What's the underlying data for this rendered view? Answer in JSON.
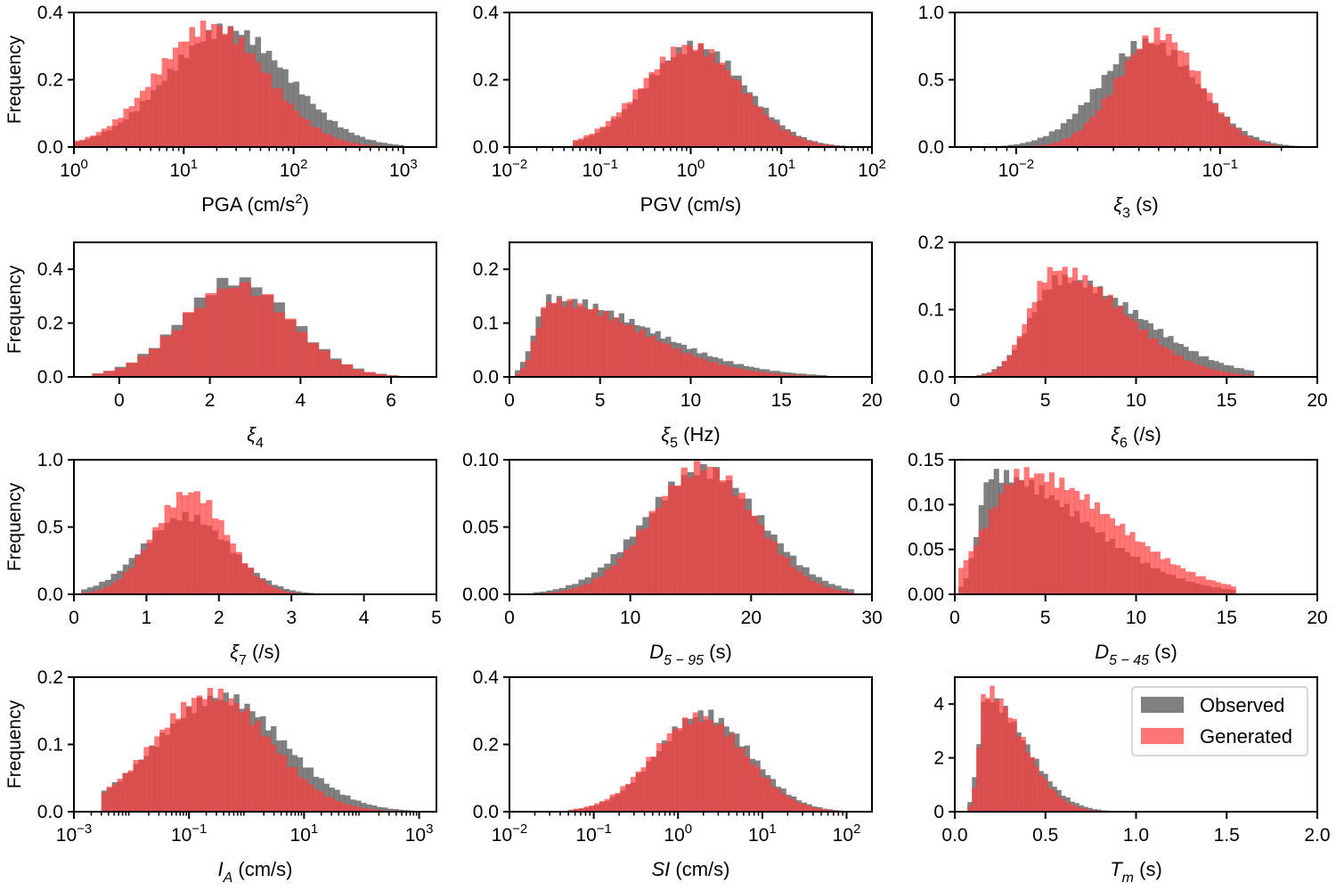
{
  "figure": {
    "legend": {
      "placement": "top-right of last panel",
      "entries": [
        {
          "label": "Observed",
          "color": "#555555"
        },
        {
          "label": "Generated",
          "color": "#ff3c3c"
        }
      ]
    },
    "colors": {
      "observed": "#555555",
      "generated": "#ff3c3c",
      "observed_alpha": 0.75,
      "generated_alpha": 0.7
    }
  },
  "chart_data": [
    {
      "id": "pga",
      "type": "bar",
      "scale": "log",
      "xlim": [
        1,
        2000
      ],
      "ylim": [
        0,
        0.4
      ],
      "xticks": [
        {
          "v": 1,
          "b": "10",
          "e": "0"
        },
        {
          "v": 10,
          "b": "10",
          "e": "1"
        },
        {
          "v": 100,
          "b": "10",
          "e": "2"
        },
        {
          "v": 1000,
          "b": "10",
          "e": "3"
        }
      ],
      "yticks": [
        {
          "v": 0,
          "t": "0.0"
        },
        {
          "v": 0.2,
          "t": "0.2"
        },
        {
          "v": 0.4,
          "t": "0.4"
        }
      ],
      "ylabel": "Frequency",
      "xlabel_parts": [
        [
          "PGA (cm/s",
          "n"
        ],
        [
          "2",
          "sup"
        ],
        [
          ")",
          "n"
        ]
      ],
      "bin": {
        "min": 1,
        "max": 1000,
        "n": 60
      },
      "obs": {
        "type": "normal",
        "mu": 1.4,
        "sigma": 0.55,
        "peak": 0.35
      },
      "gen": {
        "type": "normal",
        "mu": 1.25,
        "sigma": 0.5,
        "peak": 0.36
      }
    },
    {
      "id": "pgv",
      "type": "bar",
      "scale": "log",
      "xlim": [
        0.01,
        100
      ],
      "ylim": [
        0,
        0.4
      ],
      "xticks": [
        {
          "v": 0.01,
          "b": "10",
          "e": "−2"
        },
        {
          "v": 0.1,
          "b": "10",
          "e": "−1"
        },
        {
          "v": 1,
          "b": "10",
          "e": "0"
        },
        {
          "v": 10,
          "b": "10",
          "e": "1"
        },
        {
          "v": 100,
          "b": "10",
          "e": "2"
        }
      ],
      "yticks": [
        {
          "v": 0,
          "t": "0.0"
        },
        {
          "v": 0.2,
          "t": "0.2"
        },
        {
          "v": 0.4,
          "t": "0.4"
        }
      ],
      "ylabel": "",
      "xlabel_parts": [
        [
          "PGV (cm/s)",
          "n"
        ]
      ],
      "bin": {
        "min": 0.05,
        "max": 100,
        "n": 55
      },
      "obs": {
        "type": "normal",
        "mu": 0.05,
        "sigma": 0.55,
        "peak": 0.3
      },
      "gen": {
        "type": "normal",
        "mu": 0.0,
        "sigma": 0.55,
        "peak": 0.3
      }
    },
    {
      "id": "xi3",
      "type": "bar",
      "scale": "log",
      "xlim": [
        0.005,
        0.3
      ],
      "ylim": [
        0,
        1.0
      ],
      "xticks": [
        {
          "v": 0.01,
          "b": "10",
          "e": "−2"
        },
        {
          "v": 0.1,
          "b": "10",
          "e": "−1"
        }
      ],
      "yticks": [
        {
          "v": 0,
          "t": "0.0"
        },
        {
          "v": 0.5,
          "t": "0.5"
        },
        {
          "v": 1.0,
          "t": "1.0"
        }
      ],
      "ylabel": "",
      "xlabel_parts": [
        [
          "ξ",
          "i"
        ],
        [
          "3",
          "sub"
        ],
        [
          " (s)",
          "n"
        ]
      ],
      "bin": {
        "min": 0.008,
        "max": 0.3,
        "n": 55
      },
      "obs": {
        "type": "normal",
        "mu": -1.35,
        "sigma": 0.24,
        "peak": 0.78
      },
      "gen": {
        "type": "normal",
        "mu": -1.3,
        "sigma": 0.2,
        "peak": 0.84
      }
    },
    {
      "id": "xi4",
      "type": "bar",
      "scale": "linear",
      "xlim": [
        -1,
        7
      ],
      "ylim": [
        0,
        0.5
      ],
      "xticks": [
        {
          "v": 0,
          "t": "0"
        },
        {
          "v": 2,
          "t": "2"
        },
        {
          "v": 4,
          "t": "4"
        },
        {
          "v": 6,
          "t": "6"
        }
      ],
      "yticks": [
        {
          "v": 0,
          "t": "0.0"
        },
        {
          "v": 0.2,
          "t": "0.2"
        },
        {
          "v": 0.4,
          "t": "0.4"
        }
      ],
      "ylabel": "Frequency",
      "xlabel_parts": [
        [
          "ξ",
          "i"
        ],
        [
          "4",
          "sub"
        ]
      ],
      "bin": {
        "min": -0.6,
        "max": 6.4,
        "n": 28
      },
      "obs": {
        "type": "normal",
        "mu": 2.6,
        "sigma": 1.2,
        "peak": 0.36
      },
      "gen": {
        "type": "normal",
        "mu": 2.6,
        "sigma": 1.2,
        "peak": 0.34
      }
    },
    {
      "id": "xi5",
      "type": "bar",
      "scale": "linear",
      "xlim": [
        0,
        20
      ],
      "ylim": [
        0,
        0.25
      ],
      "xticks": [
        {
          "v": 0,
          "t": "0"
        },
        {
          "v": 5,
          "t": "5"
        },
        {
          "v": 10,
          "t": "10"
        },
        {
          "v": 15,
          "t": "15"
        },
        {
          "v": 20,
          "t": "20"
        }
      ],
      "yticks": [
        {
          "v": 0,
          "t": "0.0"
        },
        {
          "v": 0.1,
          "t": "0.1"
        },
        {
          "v": 0.2,
          "t": "0.2"
        }
      ],
      "ylabel": "",
      "xlabel_parts": [
        [
          "ξ",
          "i"
        ],
        [
          "5",
          "sub"
        ],
        [
          " (Hz)",
          "n"
        ]
      ],
      "bin": {
        "min": 0.3,
        "max": 17.5,
        "n": 60
      },
      "obs": {
        "type": "skew",
        "mode": 2.2,
        "left": 0.8,
        "right": 5.5,
        "peak": 0.145
      },
      "gen": {
        "type": "skew",
        "mode": 2.2,
        "left": 0.7,
        "right": 5.0,
        "peak": 0.14
      }
    },
    {
      "id": "xi6",
      "type": "bar",
      "scale": "linear",
      "xlim": [
        0,
        20
      ],
      "ylim": [
        0,
        0.2
      ],
      "xticks": [
        {
          "v": 0,
          "t": "0"
        },
        {
          "v": 5,
          "t": "5"
        },
        {
          "v": 10,
          "t": "10"
        },
        {
          "v": 15,
          "t": "15"
        },
        {
          "v": 20,
          "t": "20"
        }
      ],
      "yticks": [
        {
          "v": 0,
          "t": "0.0"
        },
        {
          "v": 0.1,
          "t": "0.1"
        },
        {
          "v": 0.2,
          "t": "0.2"
        }
      ],
      "ylabel": "",
      "xlabel_parts": [
        [
          "ξ",
          "i"
        ],
        [
          "6",
          "sub"
        ],
        [
          " (/s)",
          "n"
        ]
      ],
      "bin": {
        "min": 1.2,
        "max": 16.5,
        "n": 55
      },
      "obs": {
        "type": "skew",
        "mode": 5.8,
        "left": 1.6,
        "right": 4.5,
        "peak": 0.145
      },
      "gen": {
        "type": "skew",
        "mode": 5.5,
        "left": 1.4,
        "right": 3.8,
        "peak": 0.16
      }
    },
    {
      "id": "xi7",
      "type": "bar",
      "scale": "linear",
      "xlim": [
        0,
        5
      ],
      "ylim": [
        0,
        1.0
      ],
      "xticks": [
        {
          "v": 0,
          "t": "0"
        },
        {
          "v": 1,
          "t": "1"
        },
        {
          "v": 2,
          "t": "2"
        },
        {
          "v": 3,
          "t": "3"
        },
        {
          "v": 4,
          "t": "4"
        },
        {
          "v": 5,
          "t": "5"
        }
      ],
      "yticks": [
        {
          "v": 0,
          "t": "0.0"
        },
        {
          "v": 0.5,
          "t": "0.5"
        },
        {
          "v": 1.0,
          "t": "1.0"
        }
      ],
      "ylabel": "Frequency",
      "xlabel_parts": [
        [
          "ξ",
          "i"
        ],
        [
          "7",
          "sub"
        ],
        [
          " (/s)",
          "n"
        ]
      ],
      "bin": {
        "min": 0.1,
        "max": 4.2,
        "n": 50
      },
      "obs": {
        "type": "normal",
        "mu": 1.55,
        "sigma": 0.6,
        "peak": 0.58
      },
      "gen": {
        "type": "normal",
        "mu": 1.6,
        "sigma": 0.5,
        "peak": 0.76
      }
    },
    {
      "id": "d595",
      "type": "bar",
      "scale": "linear",
      "xlim": [
        0,
        30
      ],
      "ylim": [
        0,
        0.1
      ],
      "xticks": [
        {
          "v": 0,
          "t": "0"
        },
        {
          "v": 10,
          "t": "10"
        },
        {
          "v": 20,
          "t": "20"
        },
        {
          "v": 30,
          "t": "30"
        }
      ],
      "yticks": [
        {
          "v": 0,
          "t": "0.00"
        },
        {
          "v": 0.05,
          "t": "0.05"
        },
        {
          "v": 0.1,
          "t": "0.10"
        }
      ],
      "ylabel": "",
      "xlabel_parts": [
        [
          "D",
          "i"
        ],
        [
          "5 − 95",
          "subi"
        ],
        [
          " (s)",
          "n"
        ]
      ],
      "bin": {
        "min": 2,
        "max": 28.5,
        "n": 50
      },
      "obs": {
        "type": "normal",
        "mu": 16,
        "sigma": 4.8,
        "peak": 0.092
      },
      "gen": {
        "type": "normal",
        "mu": 16,
        "sigma": 4.3,
        "peak": 0.095
      }
    },
    {
      "id": "d545",
      "type": "bar",
      "scale": "linear",
      "xlim": [
        0,
        20
      ],
      "ylim": [
        0,
        0.15
      ],
      "xticks": [
        {
          "v": 0,
          "t": "0"
        },
        {
          "v": 5,
          "t": "5"
        },
        {
          "v": 10,
          "t": "10"
        },
        {
          "v": 15,
          "t": "15"
        },
        {
          "v": 20,
          "t": "20"
        }
      ],
      "yticks": [
        {
          "v": 0,
          "t": "0.00"
        },
        {
          "v": 0.05,
          "t": "0.05"
        },
        {
          "v": 0.1,
          "t": "0.10"
        },
        {
          "v": 0.15,
          "t": "0.15"
        }
      ],
      "ylabel": "",
      "xlabel_parts": [
        [
          "D",
          "i"
        ],
        [
          "5 − 45",
          "subi"
        ],
        [
          " (s)",
          "n"
        ]
      ],
      "bin": {
        "min": 0.2,
        "max": 15.5,
        "n": 55
      },
      "obs": {
        "type": "skew",
        "mode": 2.0,
        "left": 0.7,
        "right": 5.2,
        "peak": 0.133
      },
      "gen": {
        "type": "skew",
        "mode": 3.8,
        "left": 2.0,
        "right": 5.0,
        "peak": 0.135
      }
    },
    {
      "id": "ia",
      "type": "bar",
      "scale": "log",
      "xlim": [
        0.001,
        2000
      ],
      "ylim": [
        0,
        0.2
      ],
      "xticks": [
        {
          "v": 0.001,
          "b": "10",
          "e": "−3"
        },
        {
          "v": 0.1,
          "b": "10",
          "e": "−1"
        },
        {
          "v": 10,
          "b": "10",
          "e": "1"
        },
        {
          "v": 1000,
          "b": "10",
          "e": "3"
        }
      ],
      "yticks": [
        {
          "v": 0,
          "t": "0.0"
        },
        {
          "v": 0.1,
          "t": "0.1"
        },
        {
          "v": 0.2,
          "t": "0.2"
        }
      ],
      "ylabel": "Frequency",
      "xlabel_parts": [
        [
          "I",
          "i"
        ],
        [
          "A",
          "subi"
        ],
        [
          " (cm/s)",
          "n"
        ]
      ],
      "bin": {
        "min": 0.003,
        "max": 1000,
        "n": 60
      },
      "obs": {
        "type": "normal",
        "mu": -0.45,
        "sigma": 1.1,
        "peak": 0.17
      },
      "gen": {
        "type": "normal",
        "mu": -0.6,
        "sigma": 1.0,
        "peak": 0.175
      }
    },
    {
      "id": "si",
      "type": "bar",
      "scale": "log",
      "xlim": [
        0.01,
        200
      ],
      "ylim": [
        0,
        0.4
      ],
      "xticks": [
        {
          "v": 0.01,
          "b": "10",
          "e": "−2"
        },
        {
          "v": 0.1,
          "b": "10",
          "e": "−1"
        },
        {
          "v": 1,
          "b": "10",
          "e": "0"
        },
        {
          "v": 10,
          "b": "10",
          "e": "1"
        },
        {
          "v": 100,
          "b": "10",
          "e": "2"
        }
      ],
      "yticks": [
        {
          "v": 0,
          "t": "0.0"
        },
        {
          "v": 0.2,
          "t": "0.2"
        },
        {
          "v": 0.4,
          "t": "0.4"
        }
      ],
      "ylabel": "",
      "xlabel_parts": [
        [
          "SI",
          "i"
        ],
        [
          " (cm/s)",
          "n"
        ]
      ],
      "bin": {
        "min": 0.05,
        "max": 120,
        "n": 55
      },
      "obs": {
        "type": "normal",
        "mu": 0.3,
        "sigma": 0.55,
        "peak": 0.29
      },
      "gen": {
        "type": "normal",
        "mu": 0.25,
        "sigma": 0.55,
        "peak": 0.28
      }
    },
    {
      "id": "tm",
      "type": "bar",
      "scale": "linear",
      "xlim": [
        0,
        2
      ],
      "ylim": [
        0,
        5
      ],
      "xticks": [
        {
          "v": 0,
          "t": "0.0"
        },
        {
          "v": 0.5,
          "t": "0.5"
        },
        {
          "v": 1,
          "t": "1.0"
        },
        {
          "v": 1.5,
          "t": "1.5"
        },
        {
          "v": 2,
          "t": "2.0"
        }
      ],
      "yticks": [
        {
          "v": 0,
          "t": "0"
        },
        {
          "v": 2,
          "t": "2"
        },
        {
          "v": 4,
          "t": "4"
        }
      ],
      "ylabel": "",
      "xlabel_parts": [
        [
          "T",
          "i"
        ],
        [
          "m",
          "subi"
        ],
        [
          " (s)",
          "n"
        ]
      ],
      "bin": {
        "min": 0.07,
        "max": 1.3,
        "n": 50
      },
      "obs": {
        "type": "skew",
        "mode": 0.17,
        "left": 0.04,
        "right": 0.22,
        "peak": 4.2
      },
      "gen": {
        "type": "skew",
        "mode": 0.17,
        "left": 0.035,
        "right": 0.2,
        "peak": 4.5
      }
    }
  ]
}
